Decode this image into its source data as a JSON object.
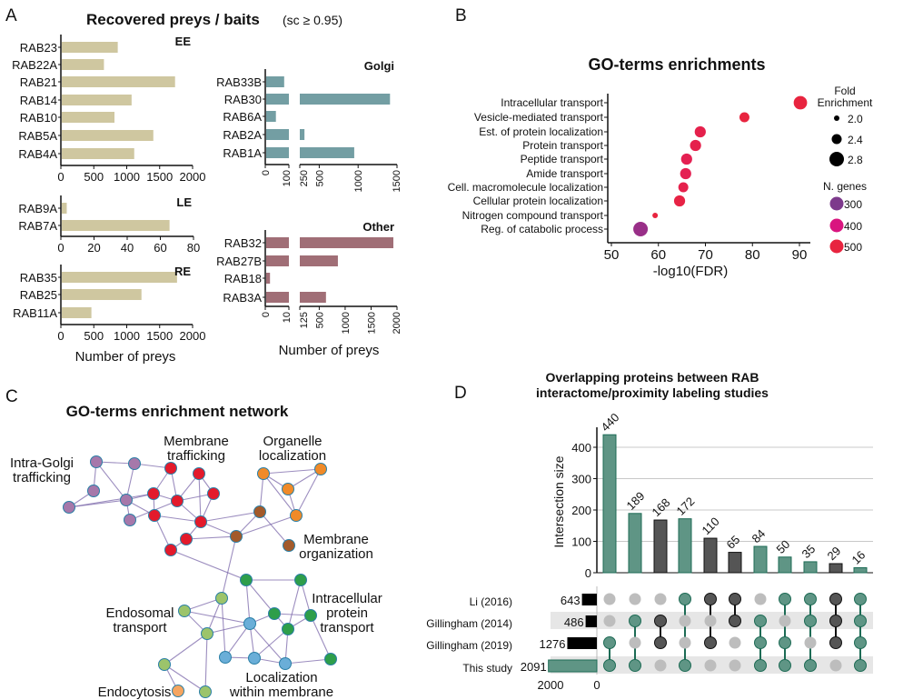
{
  "panel_labels": [
    "A",
    "B",
    "C",
    "D"
  ],
  "chart_data": [
    {
      "id": "A",
      "type": "bar",
      "orientation": "horizontal",
      "title": "Recovered preys / baits",
      "title_suffix": "(sc ≥ 0.95)",
      "xlabel": "Number of preys",
      "groups": [
        {
          "name": "EE",
          "color": "#cfc7a0",
          "categories": [
            "RAB23",
            "RAB22A",
            "RAB21",
            "RAB14",
            "RAB10",
            "RAB5A",
            "RAB4A"
          ],
          "values": [
            850,
            640,
            1720,
            1060,
            800,
            1390,
            1100
          ],
          "xlim": [
            0,
            2000
          ],
          "ticks": [
            "0",
            "500",
            "1000",
            "1500",
            "2000"
          ]
        },
        {
          "name": "LE",
          "color": "#cfc7a0",
          "categories": [
            "RAB9A",
            "RAB7A"
          ],
          "values": [
            3,
            65
          ],
          "xlim": [
            0,
            80
          ],
          "ticks": [
            "0",
            "20",
            "40",
            "60",
            "80"
          ]
        },
        {
          "name": "RE",
          "color": "#cfc7a0",
          "categories": [
            "RAB35",
            "RAB25",
            "RAB11A"
          ],
          "values": [
            1750,
            1210,
            450
          ],
          "xlim": [
            0,
            2000
          ],
          "ticks": [
            "0",
            "500",
            "1000",
            "1500",
            "2000"
          ]
        },
        {
          "name": "Golgi",
          "color": "#739ea3",
          "categories": [
            "RAB33B",
            "RAB30",
            "RAB6A",
            "RAB2A",
            "RAB1A"
          ],
          "values": [
            80,
            1410,
            45,
            310,
            950
          ],
          "broken_axis": [
            [
              0,
              100
            ],
            [
              250,
              1500
            ]
          ],
          "ticks": [
            "0",
            "100",
            "250",
            "500",
            "1000",
            "1500"
          ]
        },
        {
          "name": "Other",
          "color": "#a06e76",
          "categories": [
            "RAB32",
            "RAB27B",
            "RAB18",
            "RAB3A"
          ],
          "values": [
            1930,
            860,
            2,
            630
          ],
          "broken_axis": [
            [
              0,
              10
            ],
            [
              125,
              2000
            ]
          ],
          "ticks": [
            "0",
            "10",
            "125",
            "500",
            "1000",
            "1500",
            "2000"
          ]
        }
      ]
    },
    {
      "id": "B",
      "type": "scatter",
      "title": "GO-terms enrichments",
      "xlabel": "-log10(FDR)",
      "xlim": [
        50,
        92
      ],
      "xticks": [
        "50",
        "60",
        "70",
        "80",
        "90"
      ],
      "terms": [
        "Intracellular transport",
        "Vesicle-mediated transport",
        "Est. of protein localization",
        "Protein transport",
        "Peptide transport",
        "Amide transport",
        "Cell. macromolecule localization",
        "Cellular protein localization",
        "Nitrogen compound transport",
        "Reg. of catabolic process"
      ],
      "x": [
        90.2,
        78.3,
        68.9,
        67.9,
        66.0,
        65.8,
        65.3,
        64.5,
        59.3,
        56.2
      ],
      "fold_enrichment": [
        2.7,
        2.4,
        2.5,
        2.5,
        2.5,
        2.5,
        2.4,
        2.5,
        2.0,
        2.8
      ],
      "n_genes": [
        510,
        500,
        480,
        480,
        470,
        470,
        480,
        490,
        500,
        330
      ],
      "legend_size_title": [
        "Fold",
        "Enrichment"
      ],
      "legend_size": [
        "2.0",
        "2.4",
        "2.8"
      ],
      "legend_color_title": "N. genes",
      "legend_color": [
        "300",
        "400",
        "500"
      ],
      "legend_colors": [
        "#7d3a8c",
        "#d9157f",
        "#e8243f"
      ]
    },
    {
      "id": "C",
      "type": "network",
      "title": "GO-terms enrichment network",
      "clusters": [
        {
          "name": "intra-golgi",
          "label": [
            "Intra-Golgi",
            "trafficking"
          ],
          "color": "#a678aa"
        },
        {
          "name": "membrane-trafficking",
          "label": [
            "Membrane",
            "trafficking"
          ],
          "color": "#e31a2b"
        },
        {
          "name": "organelle-localization",
          "label": [
            "Organelle",
            "localization"
          ],
          "color": "#f08a28"
        },
        {
          "name": "membrane-organization",
          "label": [
            "Membrane",
            "organization"
          ],
          "color": "#a35a2a"
        },
        {
          "name": "intracellular-protein-transport",
          "label": [
            "Intracellular",
            "protein",
            "transport"
          ],
          "color": "#2e9e4a"
        },
        {
          "name": "endosomal-transport",
          "label": [
            "Endosomal",
            "transport"
          ],
          "color": "#9cc46b"
        },
        {
          "name": "endocytosis",
          "label": [
            "Endocytosis"
          ],
          "color": "#f5a560"
        },
        {
          "name": "localization-within-membrane",
          "label": [
            "Localization",
            "within membrane"
          ],
          "color": "#6aaed8"
        }
      ]
    },
    {
      "id": "D",
      "type": "upset",
      "title": [
        "Overlapping proteins between RAB",
        "interactome/proximity labeling studies"
      ],
      "ylabel": "Intersection size",
      "ylim": [
        0,
        450
      ],
      "yticks": [
        "0",
        "100",
        "200",
        "300",
        "400"
      ],
      "sets": [
        "Li (2016)",
        "Gillingham (2014)",
        "Gillingham (2019)",
        "This study"
      ],
      "set_sizes": [
        643,
        486,
        1276,
        2091
      ],
      "set_axis_ticks": [
        "2000",
        "0"
      ],
      "intersections": [
        {
          "sets": [
            2,
            3
          ],
          "value": 440
        },
        {
          "sets": [
            1,
            3
          ],
          "value": 189
        },
        {
          "sets": [
            1,
            2
          ],
          "value": 168
        },
        {
          "sets": [
            0,
            3
          ],
          "value": 172
        },
        {
          "sets": [
            0,
            2
          ],
          "value": 110
        },
        {
          "sets": [
            0,
            1
          ],
          "value": 65
        },
        {
          "sets": [
            1,
            2,
            3
          ],
          "value": 84
        },
        {
          "sets": [
            0,
            2,
            3
          ],
          "value": 50
        },
        {
          "sets": [
            0,
            1,
            3
          ],
          "value": 35
        },
        {
          "sets": [
            0,
            1,
            2
          ],
          "value": 29
        },
        {
          "sets": [
            0,
            1,
            2,
            3
          ],
          "value": 16
        }
      ],
      "colors": {
        "with_study": "#5f9585",
        "with_study_stroke": "#1d6b55",
        "without_study": "#555555",
        "inactive_dot": "#bdbdbd",
        "shade": "#e6e6e6"
      }
    }
  ]
}
